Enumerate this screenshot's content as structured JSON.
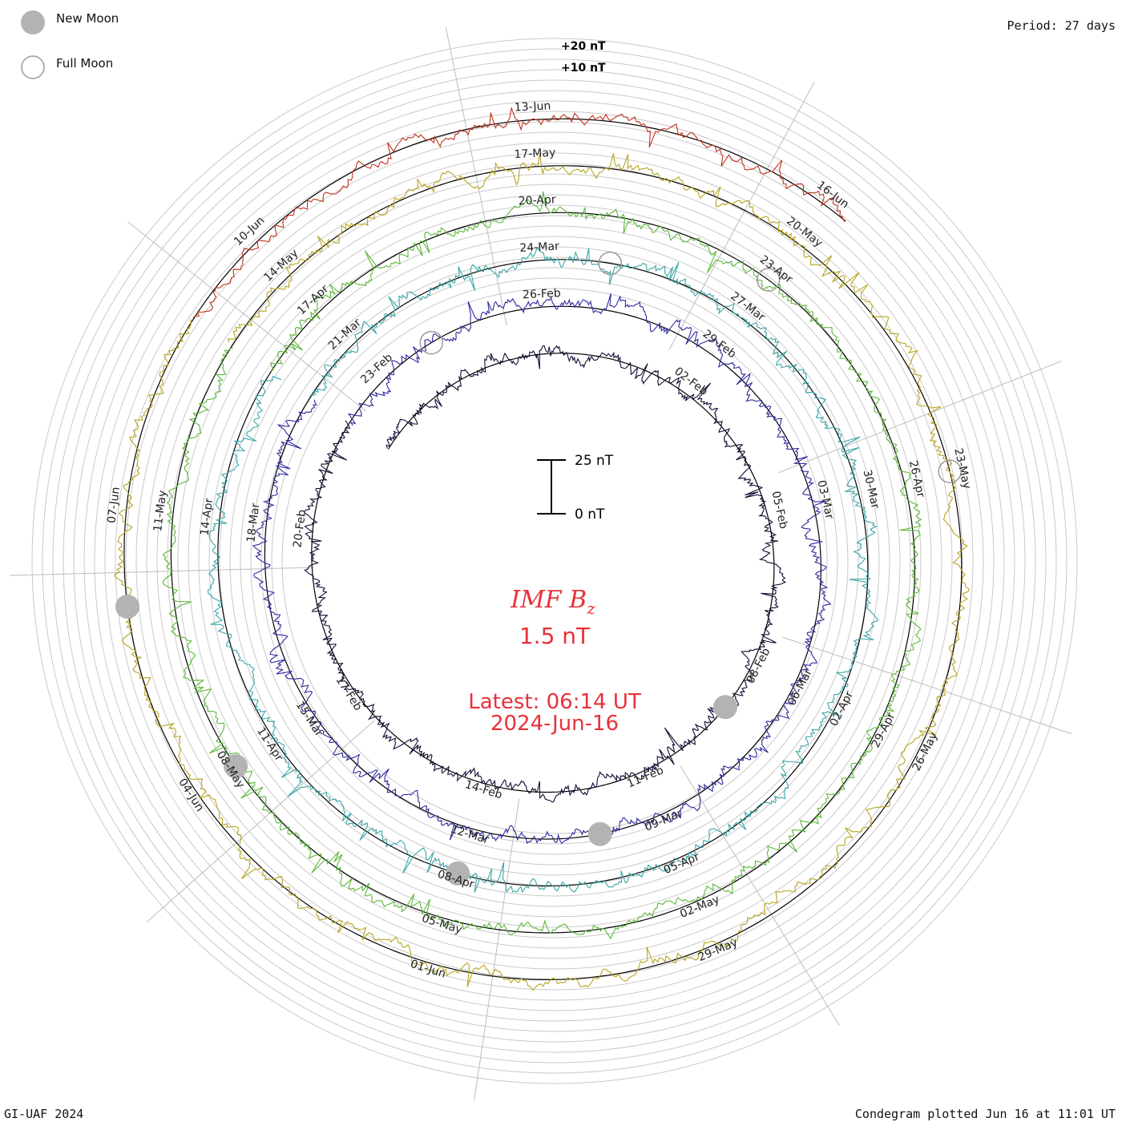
{
  "header": {
    "period": "Period: 27 days"
  },
  "legend": {
    "new_moon": "New Moon",
    "full_moon": "Full Moon",
    "moon_color": "#b3b3b3"
  },
  "footer": {
    "left": "GI-UAF 2024",
    "right": "Condegram plotted Jun 16 at 11:01 UT"
  },
  "center": {
    "title_main": "IMF B",
    "title_sub": "z",
    "value": "1.5 nT",
    "latest_line1": "Latest: 06:14 UT",
    "latest_line2": "2024-Jun-16",
    "text_color": "#e8313a"
  },
  "scale_bar": {
    "top_label": "25 nT",
    "bottom_label": "0 nT"
  },
  "ring_labels": {
    "plus20": "+20 nT",
    "plus10": "+10 nT"
  },
  "chart_data": {
    "type": "line",
    "period_days": 27,
    "start": "2024-Jan-26",
    "end": "2024-Jun-16 06:14 UT",
    "latest_value_nT": 1.5,
    "series": [
      {
        "color": "#150a33",
        "revolution": 1,
        "date_labels": [
          "02-Feb",
          "05-Feb",
          "08-Feb",
          "11-Feb",
          "14-Feb",
          "17-Feb",
          "20-Feb"
        ]
      },
      {
        "color": "#2f2a9f",
        "revolution": 2,
        "date_labels": [
          "23-Feb",
          "26-Feb",
          "29-Feb",
          "03-Mar",
          "06-Mar",
          "09-Mar",
          "12-Mar"
        ]
      },
      {
        "color": "#3aa6a8",
        "revolution": 3,
        "date_labels": [
          "15-Mar",
          "18-Mar",
          "21-Mar",
          "24-Mar",
          "27-Mar",
          "30-Mar",
          "02-Apr",
          "05-Apr",
          "08-Apr"
        ]
      },
      {
        "color": "#5cb838",
        "revolution": 4,
        "date_labels": [
          "11-Apr",
          "14-Apr",
          "17-Apr",
          "20-Apr",
          "23-Apr",
          "26-Apr",
          "29-Apr",
          "02-May",
          "05-May"
        ]
      },
      {
        "color": "#b8a41e",
        "revolution": 5,
        "date_labels": [
          "08-May",
          "11-May",
          "14-May",
          "17-May",
          "20-May",
          "23-May",
          "26-May",
          "29-May",
          "01-Jun"
        ]
      },
      {
        "color": "#c0311a",
        "revolution": 6,
        "date_labels": [
          "04-Jun",
          "07-Jun",
          "10-Jun",
          "13-Jun",
          "16-Jun"
        ]
      }
    ],
    "new_moon_dates": [
      "2024-Feb-09",
      "2024-Mar-10",
      "2024-Apr-08",
      "2024-May-08",
      "2024-Jun-06"
    ],
    "full_moon_dates": [
      "2024-Feb-24",
      "2024-Mar-25",
      "2024-Apr-23",
      "2024-May-23"
    ],
    "scale_bar_nT": [
      0,
      25
    ],
    "units": "nT"
  }
}
